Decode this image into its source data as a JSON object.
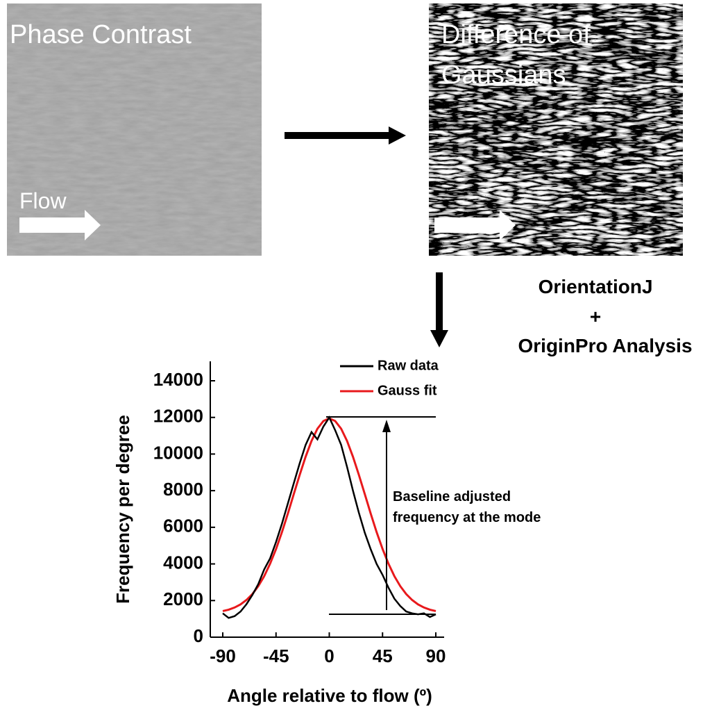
{
  "panels": {
    "phase_contrast": {
      "title": "Phase Contrast",
      "label": "Flow"
    },
    "dog": {
      "title": [
        "Difference of",
        "Gaussians"
      ]
    }
  },
  "analysis": [
    "OrientationJ",
    "+",
    "OriginPro Analysis"
  ],
  "chart_data": {
    "type": "line",
    "x": [
      -90,
      -85,
      -80,
      -75,
      -70,
      -65,
      -60,
      -55,
      -50,
      -45,
      -40,
      -35,
      -30,
      -25,
      -20,
      -15,
      -10,
      -5,
      0,
      5,
      10,
      15,
      20,
      25,
      30,
      35,
      40,
      45,
      50,
      55,
      60,
      65,
      70,
      75,
      80,
      85,
      90
    ],
    "series": [
      {
        "name": "Raw data",
        "color": "#000000",
        "values": [
          1300,
          1050,
          1150,
          1400,
          1800,
          2300,
          2900,
          3700,
          4300,
          5200,
          6200,
          7300,
          8400,
          9500,
          10500,
          11200,
          10800,
          11500,
          12000,
          11300,
          10500,
          9300,
          8000,
          6800,
          5700,
          4800,
          4000,
          3400,
          2700,
          2100,
          1700,
          1400,
          1300,
          1250,
          1300,
          1100,
          1250
        ]
      },
      {
        "name": "Gauss fit",
        "color": "#e8191c",
        "values": [
          1426,
          1503,
          1620,
          1790,
          2028,
          2353,
          2784,
          3332,
          4009,
          4813,
          5735,
          6745,
          7807,
          8865,
          9855,
          10716,
          11382,
          11805,
          11950,
          11805,
          11382,
          10716,
          9855,
          8865,
          7807,
          6745,
          5735,
          4813,
          4009,
          3332,
          2784,
          2353,
          2028,
          1790,
          1620,
          1503,
          1426
        ]
      }
    ],
    "xlim": [
      -90,
      90
    ],
    "xticks": [
      -90,
      -45,
      0,
      45,
      90
    ],
    "ylim": [
      0,
      14000
    ],
    "yticks": [
      0,
      2000,
      4000,
      6000,
      8000,
      10000,
      12000,
      14000
    ],
    "xlabel": "Angle relative to flow (º)",
    "ylabel": "Frequency per degree",
    "annotation": [
      "Baseline adjusted",
      "frequency at the mode"
    ],
    "legend": "top-right"
  }
}
